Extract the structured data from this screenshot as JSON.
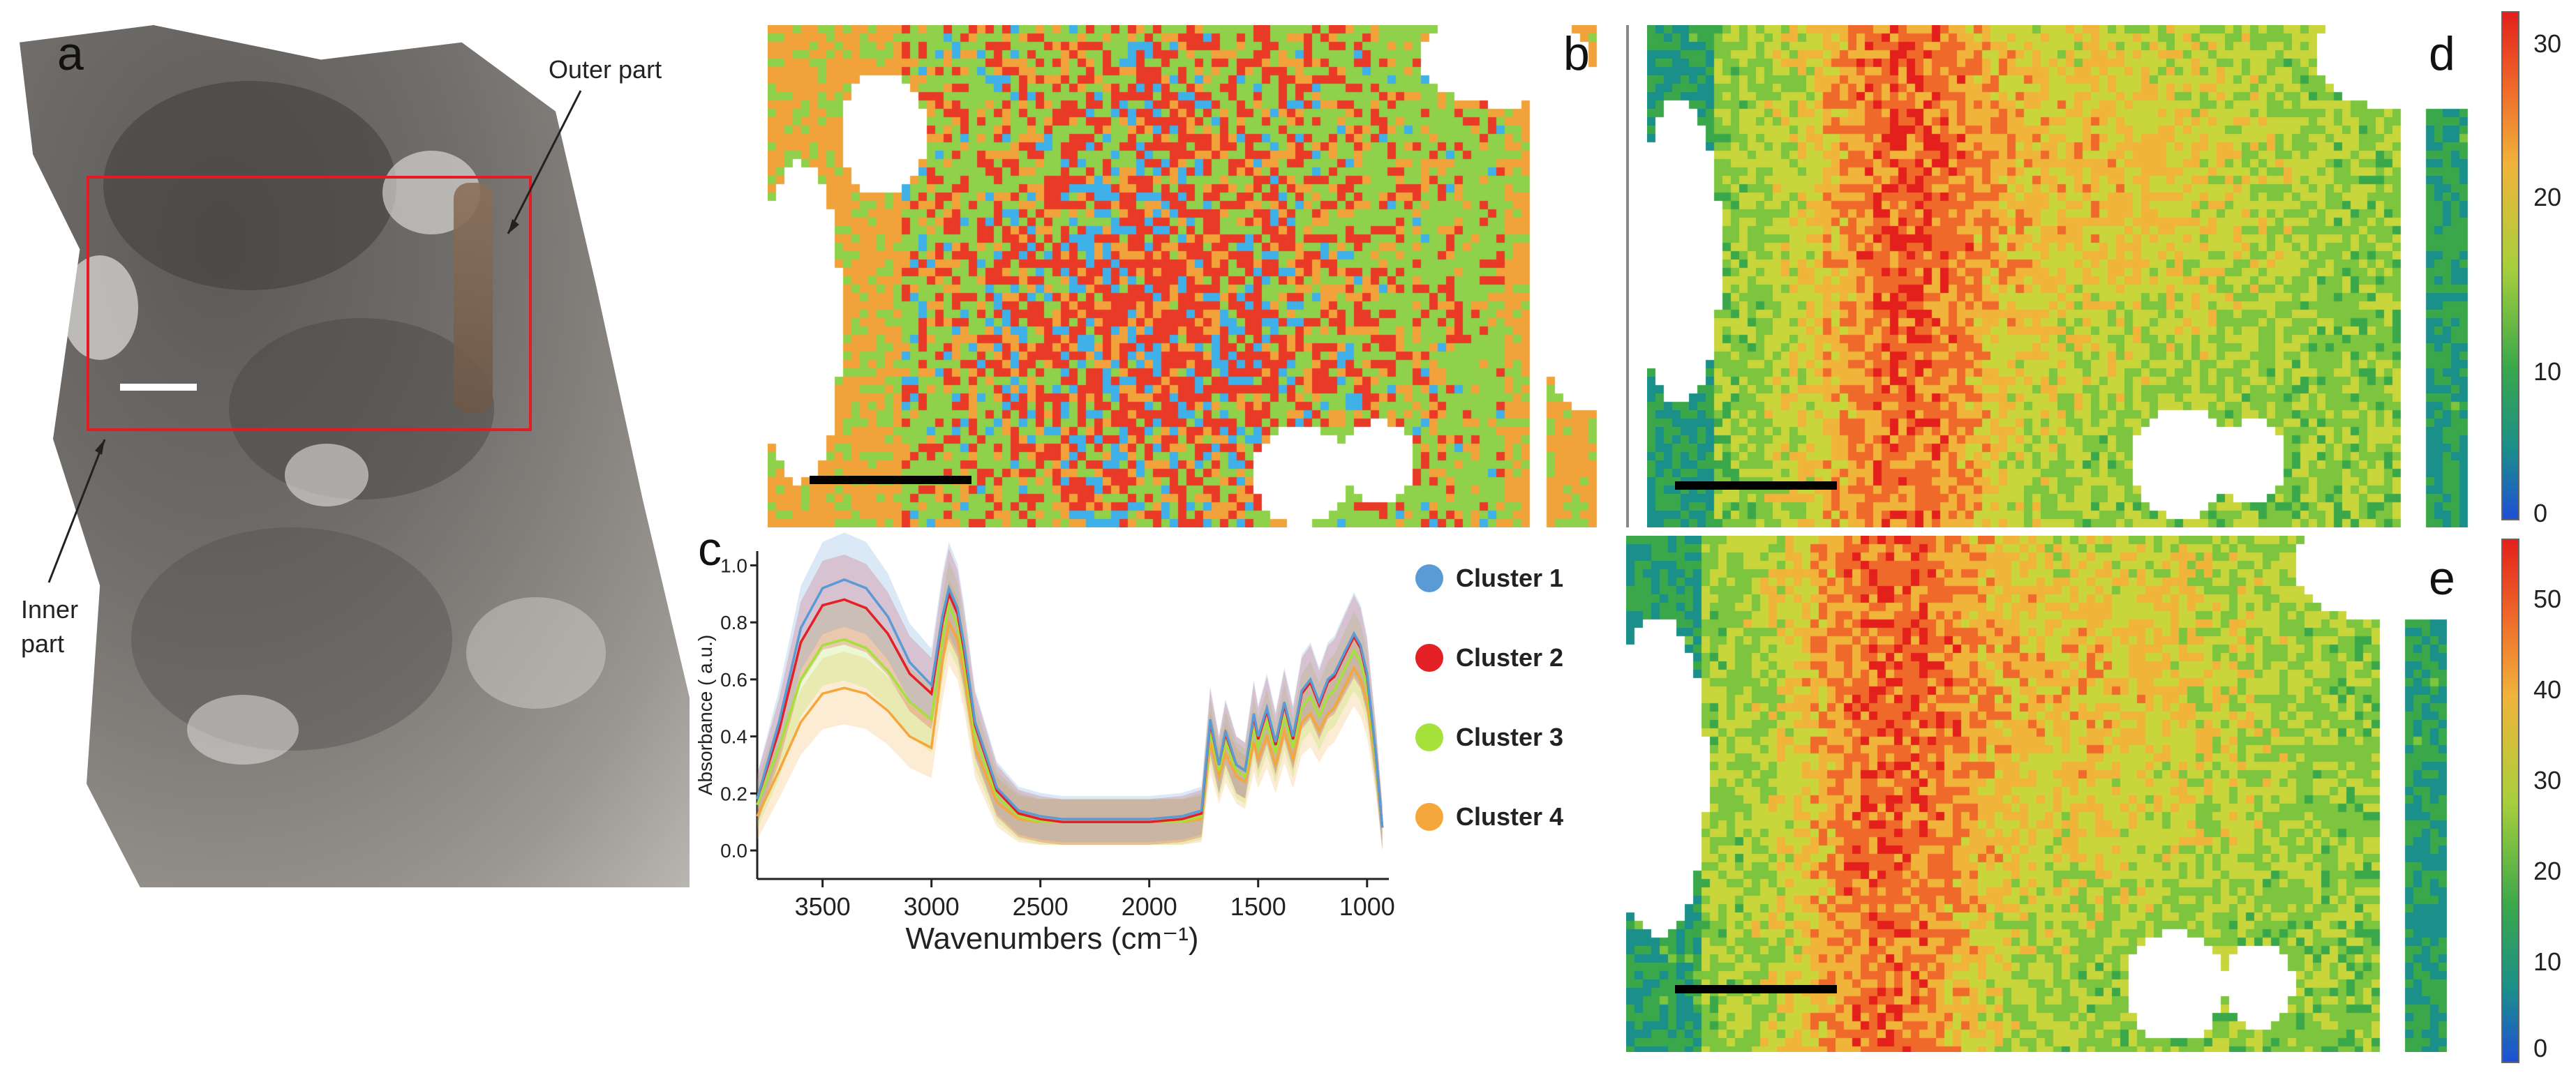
{
  "panel_letters": {
    "a": "a",
    "b": "b",
    "c": "c",
    "d": "d",
    "e": "e"
  },
  "annotations": {
    "outer": "Outer part",
    "inner_line1": "Inner",
    "inner_line2": "part"
  },
  "legend": [
    {
      "label": "Cluster 1",
      "color": "#5b9bd5"
    },
    {
      "label": "Cluster 2",
      "color": "#e41f26"
    },
    {
      "label": "Cluster 3",
      "color": "#a6e03a"
    },
    {
      "label": "Cluster 4",
      "color": "#f5a73b"
    }
  ],
  "colorbar_d": {
    "ticks": [
      "30",
      "20",
      "10",
      "0"
    ]
  },
  "colorbar_e": {
    "ticks": [
      "50",
      "40",
      "30",
      "20",
      "10",
      "0"
    ]
  },
  "map_colors": {
    "cluster1": "#3fb0e8",
    "cluster2": "#e83a26",
    "cluster3": "#8fd14a",
    "cluster4": "#f2a23a"
  },
  "chart_data": {
    "type": "line",
    "xlabel": "Wavenumbers  (cm⁻¹)",
    "ylabel": "Absorbance ( a.u.)",
    "x_reversed": true,
    "xlim": [
      3800,
      900
    ],
    "ylim": [
      -0.1,
      1.05
    ],
    "xticks": [
      "3500",
      "3000",
      "2500",
      "2000",
      "1500",
      "1000"
    ],
    "yticks": [
      "0.0",
      "0.2",
      "0.4",
      "0.6",
      "0.8",
      "1.0"
    ],
    "x": [
      3800,
      3700,
      3600,
      3500,
      3400,
      3300,
      3200,
      3100,
      3000,
      2950,
      2920,
      2880,
      2850,
      2800,
      2700,
      2600,
      2500,
      2400,
      2200,
      2000,
      1850,
      1760,
      1720,
      1680,
      1650,
      1600,
      1560,
      1520,
      1500,
      1460,
      1420,
      1380,
      1340,
      1300,
      1260,
      1220,
      1180,
      1150,
      1100,
      1060,
      1030,
      1000,
      960,
      930
    ],
    "series": [
      {
        "name": "Cluster 1",
        "color": "#5b9bd5",
        "values": [
          0.18,
          0.45,
          0.78,
          0.92,
          0.95,
          0.92,
          0.82,
          0.66,
          0.58,
          0.82,
          0.92,
          0.85,
          0.72,
          0.45,
          0.22,
          0.14,
          0.12,
          0.11,
          0.11,
          0.11,
          0.12,
          0.14,
          0.46,
          0.3,
          0.42,
          0.3,
          0.28,
          0.48,
          0.4,
          0.5,
          0.38,
          0.52,
          0.4,
          0.56,
          0.6,
          0.52,
          0.6,
          0.62,
          0.7,
          0.76,
          0.72,
          0.62,
          0.34,
          0.08
        ]
      },
      {
        "name": "Cluster 2",
        "color": "#e41f26",
        "values": [
          0.18,
          0.42,
          0.73,
          0.86,
          0.88,
          0.85,
          0.76,
          0.62,
          0.55,
          0.8,
          0.9,
          0.83,
          0.7,
          0.44,
          0.21,
          0.13,
          0.11,
          0.1,
          0.1,
          0.1,
          0.11,
          0.13,
          0.45,
          0.3,
          0.41,
          0.3,
          0.28,
          0.47,
          0.39,
          0.49,
          0.37,
          0.51,
          0.39,
          0.55,
          0.59,
          0.51,
          0.59,
          0.61,
          0.69,
          0.75,
          0.71,
          0.61,
          0.34,
          0.08
        ]
      },
      {
        "name": "Cluster 3",
        "color": "#a6e03a",
        "values": [
          0.16,
          0.36,
          0.6,
          0.72,
          0.74,
          0.71,
          0.63,
          0.52,
          0.46,
          0.74,
          0.86,
          0.79,
          0.66,
          0.4,
          0.19,
          0.12,
          0.1,
          0.1,
          0.1,
          0.1,
          0.1,
          0.12,
          0.42,
          0.28,
          0.38,
          0.28,
          0.26,
          0.43,
          0.36,
          0.45,
          0.34,
          0.47,
          0.36,
          0.5,
          0.54,
          0.47,
          0.54,
          0.56,
          0.64,
          0.7,
          0.66,
          0.57,
          0.32,
          0.08
        ]
      },
      {
        "name": "Cluster 4",
        "color": "#f5a73b",
        "values": [
          0.12,
          0.28,
          0.45,
          0.55,
          0.57,
          0.55,
          0.49,
          0.4,
          0.36,
          0.66,
          0.8,
          0.74,
          0.62,
          0.36,
          0.17,
          0.11,
          0.1,
          0.1,
          0.1,
          0.1,
          0.1,
          0.11,
          0.38,
          0.26,
          0.34,
          0.26,
          0.24,
          0.38,
          0.32,
          0.4,
          0.3,
          0.42,
          0.32,
          0.45,
          0.48,
          0.42,
          0.48,
          0.5,
          0.58,
          0.64,
          0.6,
          0.52,
          0.3,
          0.08
        ]
      }
    ]
  }
}
